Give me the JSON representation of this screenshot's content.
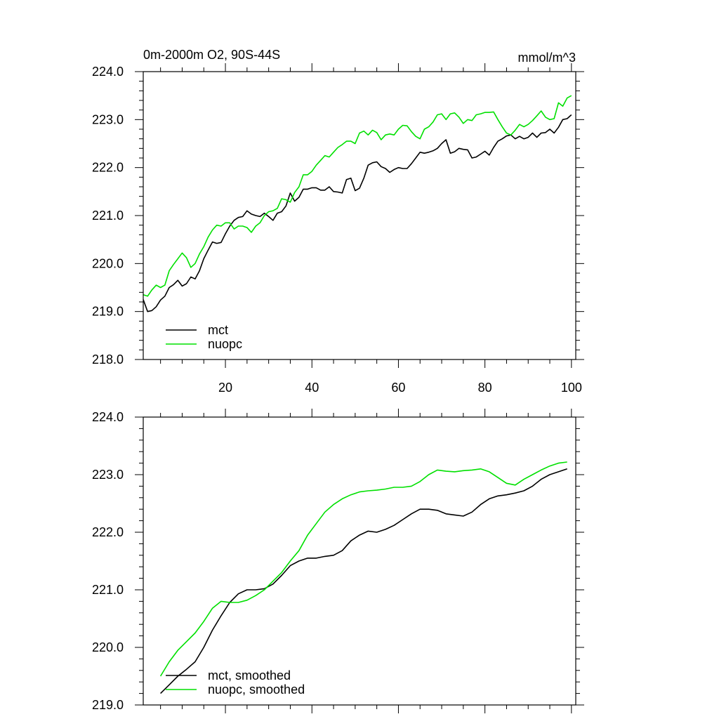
{
  "chart_data": [
    {
      "type": "line",
      "title_left": "0m-2000m O2, 90S-44S",
      "title_right": "mmol/m^3",
      "xlim": [
        1,
        101
      ],
      "ylim": [
        218.0,
        224.0
      ],
      "x_ticks": [
        20,
        40,
        60,
        80,
        100
      ],
      "y_ticks": [
        218.0,
        219.0,
        220.0,
        221.0,
        222.0,
        223.0,
        224.0
      ],
      "y_tick_labels": [
        "218.0",
        "219.0",
        "220.0",
        "221.0",
        "222.0",
        "223.0",
        "224.0"
      ],
      "x_tick_labels": [
        "20",
        "40",
        "60",
        "80",
        "100"
      ],
      "legend_position": "bottom-left",
      "series": [
        {
          "name": "mct",
          "color": "#000000",
          "x": [
            1,
            2,
            3,
            4,
            5,
            6,
            7,
            8,
            9,
            10,
            11,
            12,
            13,
            14,
            15,
            16,
            17,
            18,
            19,
            20,
            21,
            22,
            23,
            24,
            25,
            26,
            27,
            28,
            29,
            30,
            31,
            32,
            33,
            34,
            35,
            36,
            37,
            38,
            39,
            40,
            41,
            42,
            43,
            44,
            45,
            46,
            47,
            48,
            49,
            50,
            51,
            52,
            53,
            54,
            55,
            56,
            57,
            58,
            59,
            60,
            61,
            62,
            63,
            64,
            65,
            66,
            67,
            68,
            69,
            70,
            71,
            72,
            73,
            74,
            75,
            76,
            77,
            78,
            79,
            80,
            81,
            82,
            83,
            84,
            85,
            86,
            87,
            88,
            89,
            90,
            91,
            92,
            93,
            94,
            95,
            96,
            97,
            98,
            99,
            100
          ],
          "values": [
            219.25,
            219.0,
            219.02,
            219.1,
            219.24,
            219.32,
            219.5,
            219.56,
            219.65,
            219.53,
            219.58,
            219.72,
            219.68,
            219.85,
            220.1,
            220.28,
            220.45,
            220.42,
            220.44,
            220.62,
            220.78,
            220.9,
            220.96,
            220.98,
            221.1,
            221.03,
            221.0,
            220.98,
            221.05,
            220.98,
            220.9,
            221.05,
            221.08,
            221.2,
            221.47,
            221.3,
            221.38,
            221.55,
            221.55,
            221.58,
            221.58,
            221.53,
            221.53,
            221.6,
            221.5,
            221.49,
            221.47,
            221.75,
            221.78,
            221.52,
            221.57,
            221.78,
            222.05,
            222.1,
            222.12,
            222.02,
            221.98,
            221.9,
            221.96,
            222.0,
            221.98,
            221.98,
            222.08,
            222.2,
            222.32,
            222.3,
            222.32,
            222.35,
            222.4,
            222.5,
            222.58,
            222.3,
            222.33,
            222.4,
            222.38,
            222.37,
            222.2,
            222.22,
            222.28,
            222.34,
            222.26,
            222.42,
            222.55,
            222.6,
            222.66,
            222.68,
            222.6,
            222.65,
            222.6,
            222.63,
            222.72,
            222.63,
            222.72,
            222.73,
            222.8,
            222.72,
            222.84,
            223.0,
            223.02,
            223.1
          ]
        },
        {
          "name": "nuopc",
          "color": "#00e000",
          "x": [
            1,
            2,
            3,
            4,
            5,
            6,
            7,
            8,
            9,
            10,
            11,
            12,
            13,
            14,
            15,
            16,
            17,
            18,
            19,
            20,
            21,
            22,
            23,
            24,
            25,
            26,
            27,
            28,
            29,
            30,
            31,
            32,
            33,
            34,
            35,
            36,
            37,
            38,
            39,
            40,
            41,
            42,
            43,
            44,
            45,
            46,
            47,
            48,
            49,
            50,
            51,
            52,
            53,
            54,
            55,
            56,
            57,
            58,
            59,
            60,
            61,
            62,
            63,
            64,
            65,
            66,
            67,
            68,
            69,
            70,
            71,
            72,
            73,
            74,
            75,
            76,
            77,
            78,
            79,
            80,
            81,
            82,
            83,
            84,
            85,
            86,
            87,
            88,
            89,
            90,
            91,
            92,
            93,
            94,
            95,
            96,
            97,
            98,
            99,
            100
          ],
          "values": [
            219.35,
            219.32,
            219.45,
            219.55,
            219.5,
            219.55,
            219.85,
            219.98,
            220.1,
            220.22,
            220.12,
            219.92,
            220.0,
            220.2,
            220.35,
            220.55,
            220.7,
            220.8,
            220.78,
            220.85,
            220.85,
            220.72,
            220.78,
            220.78,
            220.75,
            220.65,
            220.78,
            220.85,
            221.0,
            221.08,
            221.1,
            221.15,
            221.35,
            221.33,
            221.28,
            221.48,
            221.6,
            221.85,
            221.85,
            221.92,
            222.05,
            222.15,
            222.25,
            222.22,
            222.32,
            222.42,
            222.48,
            222.55,
            222.55,
            222.5,
            222.72,
            222.76,
            222.68,
            222.78,
            222.73,
            222.58,
            222.68,
            222.7,
            222.68,
            222.8,
            222.88,
            222.87,
            222.75,
            222.65,
            222.6,
            222.8,
            222.85,
            222.95,
            223.1,
            223.12,
            223.0,
            223.12,
            223.14,
            223.05,
            222.92,
            223.0,
            222.98,
            223.1,
            223.12,
            223.15,
            223.15,
            223.16,
            223.0,
            222.85,
            222.72,
            222.68,
            222.78,
            222.9,
            222.85,
            222.9,
            222.98,
            223.08,
            223.18,
            223.05,
            223.0,
            223.02,
            223.35,
            223.28,
            223.45,
            223.5
          ]
        }
      ]
    },
    {
      "type": "line",
      "xlim": [
        1,
        101
      ],
      "ylim": [
        219.0,
        224.0
      ],
      "x_ticks": [
        20,
        40,
        60,
        80,
        100
      ],
      "y_ticks": [
        219.0,
        220.0,
        221.0,
        222.0,
        223.0,
        224.0
      ],
      "y_tick_labels": [
        "219.0",
        "220.0",
        "221.0",
        "222.0",
        "223.0",
        "224.0"
      ],
      "legend_position": "bottom-left",
      "series": [
        {
          "name": "mct, smoothed",
          "color": "#000000",
          "x": [
            5,
            7,
            9,
            11,
            13,
            15,
            17,
            19,
            21,
            23,
            25,
            27,
            29,
            31,
            33,
            35,
            37,
            39,
            41,
            43,
            45,
            47,
            49,
            51,
            53,
            55,
            57,
            59,
            61,
            63,
            65,
            67,
            69,
            71,
            73,
            75,
            77,
            79,
            81,
            83,
            85,
            87,
            89,
            91,
            93,
            95,
            97,
            99
          ],
          "values": [
            219.2,
            219.35,
            219.5,
            219.62,
            219.75,
            220.0,
            220.3,
            220.55,
            220.78,
            220.93,
            221.0,
            221.0,
            221.02,
            221.1,
            221.25,
            221.42,
            221.5,
            221.55,
            221.55,
            221.58,
            221.6,
            221.68,
            221.85,
            221.95,
            222.02,
            222.0,
            222.05,
            222.12,
            222.22,
            222.32,
            222.4,
            222.4,
            222.38,
            222.32,
            222.3,
            222.28,
            222.35,
            222.48,
            222.58,
            222.63,
            222.65,
            222.68,
            222.72,
            222.8,
            222.92,
            223.0,
            223.05,
            223.1
          ]
        },
        {
          "name": "nuopc, smoothed",
          "color": "#00e000",
          "x": [
            5,
            7,
            9,
            11,
            13,
            15,
            17,
            19,
            21,
            23,
            25,
            27,
            29,
            31,
            33,
            35,
            37,
            39,
            41,
            43,
            45,
            47,
            49,
            51,
            53,
            55,
            57,
            59,
            61,
            63,
            65,
            67,
            69,
            71,
            73,
            75,
            77,
            79,
            81,
            83,
            85,
            87,
            89,
            91,
            93,
            95,
            97,
            99
          ],
          "values": [
            219.5,
            219.75,
            219.95,
            220.1,
            220.25,
            220.45,
            220.68,
            220.8,
            220.78,
            220.78,
            220.82,
            220.9,
            221.0,
            221.15,
            221.3,
            221.5,
            221.68,
            221.95,
            222.15,
            222.35,
            222.48,
            222.58,
            222.65,
            222.7,
            222.72,
            222.73,
            222.75,
            222.78,
            222.78,
            222.8,
            222.88,
            223.0,
            223.08,
            223.06,
            223.05,
            223.07,
            223.08,
            223.1,
            223.05,
            222.95,
            222.85,
            222.82,
            222.92,
            223.0,
            223.08,
            223.15,
            223.2,
            223.22
          ]
        }
      ]
    }
  ]
}
